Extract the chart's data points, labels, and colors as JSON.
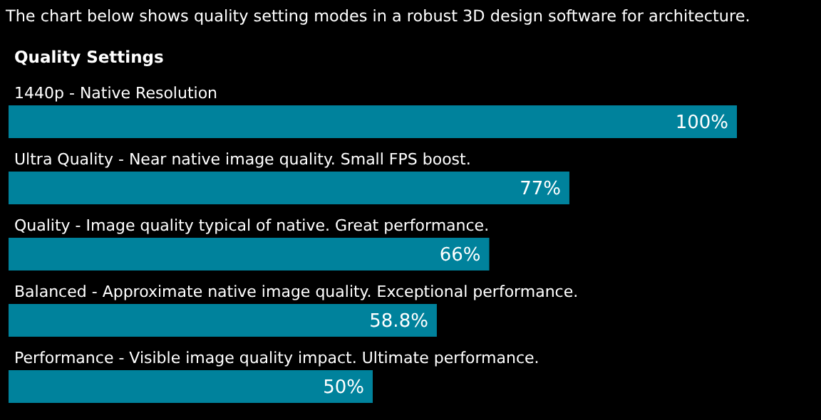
{
  "chart_data": {
    "type": "bar",
    "orientation": "horizontal",
    "title": "The chart below shows quality setting modes in a robust 3D design software for architecture.",
    "subtitle": "Quality Settings",
    "categories": [
      "1440p - Native Resolution",
      "Ultra Quality - Near native image quality. Small FPS boost.",
      "Quality - Image quality typical of native. Great performance.",
      "Balanced - Approximate native image quality. Exceptional performance.",
      "Performance - Visible image quality impact. Ultimate performance."
    ],
    "values": [
      100,
      77,
      66,
      58.8,
      50
    ],
    "value_labels": [
      "100%",
      "77%",
      "66%",
      "58.8%",
      "50%"
    ],
    "color": "#00829c"
  }
}
